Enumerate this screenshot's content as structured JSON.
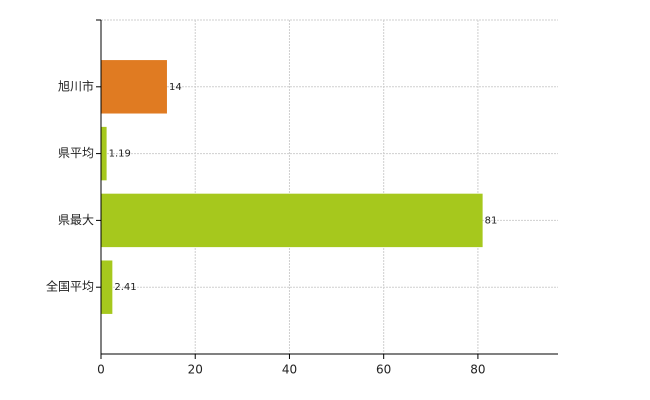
{
  "chart_data": {
    "type": "hbar",
    "categories": [
      "旭川市",
      "県平均",
      "県最大",
      "全国平均"
    ],
    "values": [
      14,
      1.19,
      81,
      2.41
    ],
    "colors": [
      "#e07b22",
      "#a6c81d",
      "#a6c81d",
      "#a6c81d"
    ],
    "xlim": [
      0,
      97
    ],
    "xticks": [
      0,
      20,
      40,
      60,
      80
    ],
    "grid": true
  }
}
